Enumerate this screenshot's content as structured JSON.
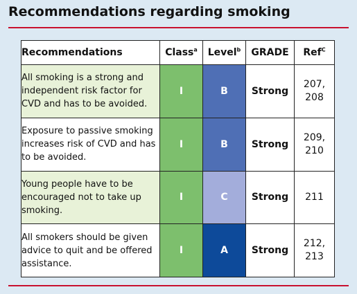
{
  "title": "Recommendations regarding smoking",
  "headers": {
    "recommendations": "Recommendations",
    "class": "Class",
    "class_sup": "a",
    "level": "Level",
    "level_sup": "b",
    "grade": "GRADE",
    "ref": "Ref",
    "ref_sup": "C"
  },
  "rows": [
    {
      "text": "All smoking is a strong and independent risk factor for CVD and has to be avoided.",
      "class": "I",
      "level": "B",
      "level_color": "#4f6fb5",
      "grade": "Strong",
      "ref": "207,\n208",
      "row_bg": "#e8f2d8"
    },
    {
      "text": "Exposure to passive smoking increases risk of CVD and has to be avoided.",
      "class": "I",
      "level": "B",
      "level_color": "#4f6fb5",
      "grade": "Strong",
      "ref": "209,\n210",
      "row_bg": "#ffffff"
    },
    {
      "text": "Young people have to be encouraged not to take up smoking.",
      "class": "I",
      "level": "C",
      "level_color": "#a3addb",
      "grade": "Strong",
      "ref": "211",
      "row_bg": "#e8f2d8"
    },
    {
      "text": "All smokers should be given advice to quit and be offered assistance.",
      "class": "I",
      "level": "A",
      "level_color": "#0d4a9a",
      "grade": "Strong",
      "ref": "212,\n213",
      "row_bg": "#ffffff"
    }
  ],
  "colors": {
    "background": "#dce9f3",
    "rule": "#c8102e",
    "class_green": "#7dbf6d"
  }
}
